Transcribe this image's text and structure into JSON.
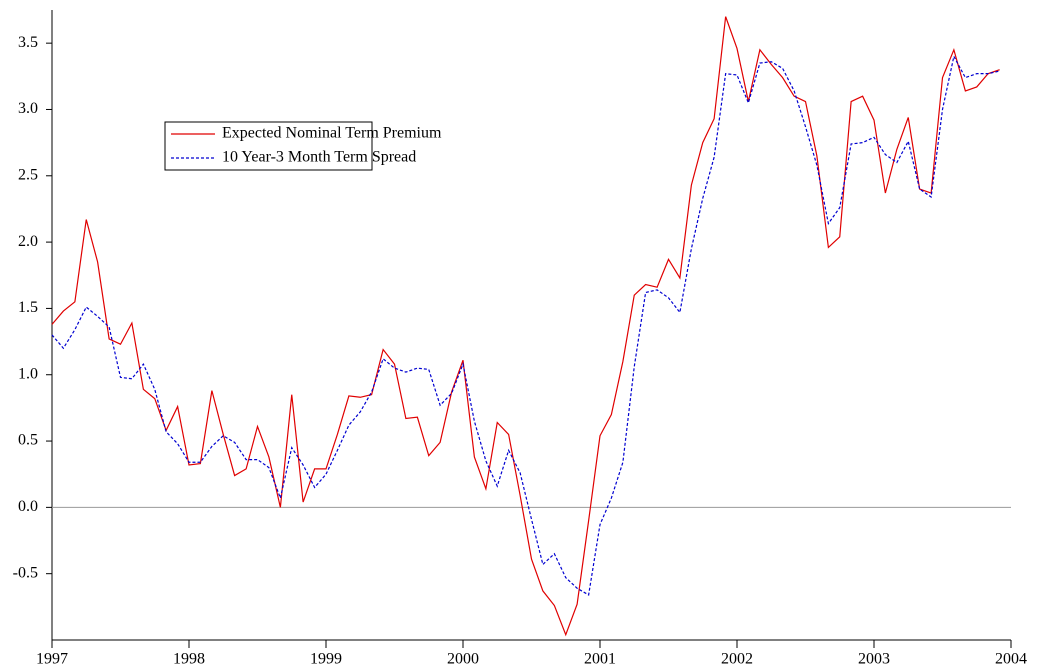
{
  "chart_data": {
    "type": "line",
    "x": [
      1997,
      1997.083,
      1997.167,
      1997.25,
      1997.333,
      1997.417,
      1997.5,
      1997.583,
      1997.667,
      1997.75,
      1997.833,
      1997.917,
      1998,
      1998.083,
      1998.167,
      1998.25,
      1998.333,
      1998.417,
      1998.5,
      1998.583,
      1998.667,
      1998.75,
      1998.833,
      1998.917,
      1999,
      1999.083,
      1999.167,
      1999.25,
      1999.333,
      1999.417,
      1999.5,
      1999.583,
      1999.667,
      1999.75,
      1999.833,
      1999.917,
      2000,
      2000.083,
      2000.167,
      2000.25,
      2000.333,
      2000.417,
      2000.5,
      2000.583,
      2000.667,
      2000.75,
      2000.833,
      2000.917,
      2001,
      2001.083,
      2001.167,
      2001.25,
      2001.333,
      2001.417,
      2001.5,
      2001.583,
      2001.667,
      2001.75,
      2001.833,
      2001.917,
      2002,
      2002.083,
      2002.167,
      2002.25,
      2002.333,
      2002.417,
      2002.5,
      2002.583,
      2002.667,
      2002.75,
      2002.833,
      2002.917,
      2003,
      2003.083,
      2003.167,
      2003.25,
      2003.333,
      2003.417,
      2003.5,
      2003.583,
      2003.667,
      2003.75,
      2003.833,
      2003.917
    ],
    "series": [
      {
        "name": "Expected Nominal Term Premium",
        "color": "#e00000",
        "dash": "solid",
        "values": [
          1.38,
          1.48,
          1.55,
          2.17,
          1.85,
          1.27,
          1.23,
          1.39,
          0.89,
          0.82,
          0.58,
          0.76,
          0.32,
          0.33,
          0.88,
          0.55,
          0.24,
          0.29,
          0.61,
          0.38,
          0.0,
          0.85,
          0.04,
          0.29,
          0.29,
          0.55,
          0.84,
          0.83,
          0.85,
          1.19,
          1.08,
          0.67,
          0.68,
          0.39,
          0.49,
          0.87,
          1.11,
          0.38,
          0.14,
          0.64,
          0.55,
          0.09,
          -0.39,
          -0.63,
          -0.74,
          -0.96,
          -0.73,
          -0.1,
          0.54,
          0.7,
          1.1,
          1.6,
          1.68,
          1.66,
          1.87,
          1.73,
          2.43,
          2.75,
          2.93,
          3.7,
          3.46,
          3.06,
          3.45,
          3.34,
          3.24,
          3.1,
          3.06,
          2.65,
          1.96,
          2.04,
          3.06,
          3.1,
          2.92,
          2.37,
          2.7,
          2.94,
          2.4,
          2.37,
          3.24,
          3.45,
          3.14,
          3.17,
          3.27,
          3.3
        ]
      },
      {
        "name": "10 Year-3 Month Term Spread",
        "color": "#0000d0",
        "dash": "dashed",
        "values": [
          1.3,
          1.2,
          1.34,
          1.51,
          1.44,
          1.36,
          0.98,
          0.97,
          1.08,
          0.89,
          0.57,
          0.48,
          0.34,
          0.34,
          0.46,
          0.54,
          0.49,
          0.36,
          0.36,
          0.3,
          0.07,
          0.45,
          0.32,
          0.15,
          0.25,
          0.43,
          0.62,
          0.72,
          0.87,
          1.12,
          1.05,
          1.02,
          1.05,
          1.04,
          0.77,
          0.86,
          1.08,
          0.65,
          0.35,
          0.16,
          0.43,
          0.26,
          -0.09,
          -0.43,
          -0.35,
          -0.53,
          -0.61,
          -0.66,
          -0.13,
          0.07,
          0.34,
          1.06,
          1.62,
          1.64,
          1.58,
          1.47,
          1.95,
          2.33,
          2.64,
          3.27,
          3.26,
          3.05,
          3.35,
          3.36,
          3.31,
          3.14,
          2.87,
          2.58,
          2.14,
          2.26,
          2.74,
          2.75,
          2.79,
          2.66,
          2.6,
          2.76,
          2.4,
          2.34,
          3.0,
          3.4,
          3.24,
          3.27,
          3.27,
          3.29
        ]
      }
    ],
    "xlim": [
      1997,
      2004
    ],
    "xticks": [
      1997,
      1998,
      1999,
      2000,
      2001,
      2002,
      2003,
      2004
    ],
    "ylim": [
      -1,
      3.75
    ],
    "yticks": [
      -0.5,
      {
        "value": 0,
        "label": "0.0"
      },
      0.5,
      {
        "value": 1,
        "label": "1.0"
      },
      1.5,
      {
        "value": 2,
        "label": "2.0"
      },
      2.5,
      {
        "value": 3,
        "label": "3.0"
      },
      3.5
    ],
    "grid": false,
    "legend": "upper left"
  }
}
